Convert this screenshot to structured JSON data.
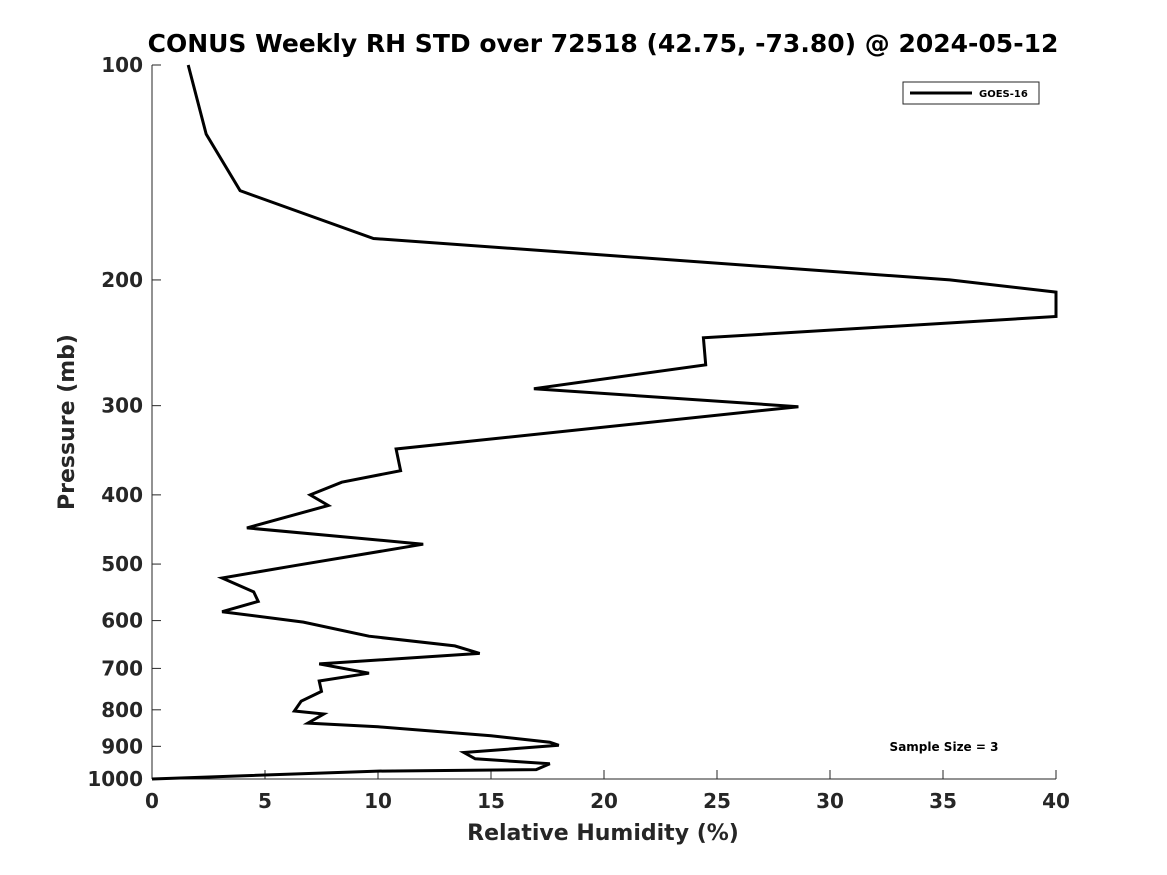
{
  "chart_data": {
    "type": "line",
    "title": "CONUS Weekly RH STD over 72518 (42.75, -73.80) @ 2024-05-12",
    "xlabel": "Relative Humidity (%)",
    "ylabel": "Pressure (mb)",
    "xlim": [
      0,
      40
    ],
    "ylim": [
      100,
      1000
    ],
    "y_scale": "log",
    "y_reversed": true,
    "xticks": [
      0,
      5,
      10,
      15,
      20,
      25,
      30,
      35,
      40
    ],
    "yticks": [
      100,
      200,
      300,
      400,
      500,
      600,
      700,
      800,
      900,
      1000
    ],
    "grid": false,
    "legend_position": "top-right",
    "annotation": "Sample Size = 3",
    "series": [
      {
        "name": "GOES-16",
        "color": "#000000",
        "points": [
          [
            1.6,
            100
          ],
          [
            2.4,
            125
          ],
          [
            3.9,
            150
          ],
          [
            9.8,
            175
          ],
          [
            35.3,
            200
          ],
          [
            40.0,
            208
          ],
          [
            40.0,
            225
          ],
          [
            24.4,
            241
          ],
          [
            24.5,
            263
          ],
          [
            16.9,
            284
          ],
          [
            28.6,
            301
          ],
          [
            10.8,
            345
          ],
          [
            11.0,
            370
          ],
          [
            8.4,
            384
          ],
          [
            7.0,
            400
          ],
          [
            7.8,
            414
          ],
          [
            4.2,
            445
          ],
          [
            12.0,
            469
          ],
          [
            6.4,
            502
          ],
          [
            3.1,
            523
          ],
          [
            4.5,
            547
          ],
          [
            4.7,
            564
          ],
          [
            3.1,
            583
          ],
          [
            6.7,
            603
          ],
          [
            9.6,
            631
          ],
          [
            13.4,
            651
          ],
          [
            14.5,
            667
          ],
          [
            7.4,
            690
          ],
          [
            9.6,
            711
          ],
          [
            7.4,
            729
          ],
          [
            7.5,
            754
          ],
          [
            6.6,
            778
          ],
          [
            6.3,
            803
          ],
          [
            7.6,
            811
          ],
          [
            6.9,
            835
          ],
          [
            10.0,
            845
          ],
          [
            15.0,
            870
          ],
          [
            17.6,
            888
          ],
          [
            18.0,
            897
          ],
          [
            13.8,
            918
          ],
          [
            14.3,
            937
          ],
          [
            17.6,
            952
          ],
          [
            17.0,
            970
          ],
          [
            10.0,
            975
          ],
          [
            0.0,
            1000
          ]
        ]
      }
    ]
  }
}
